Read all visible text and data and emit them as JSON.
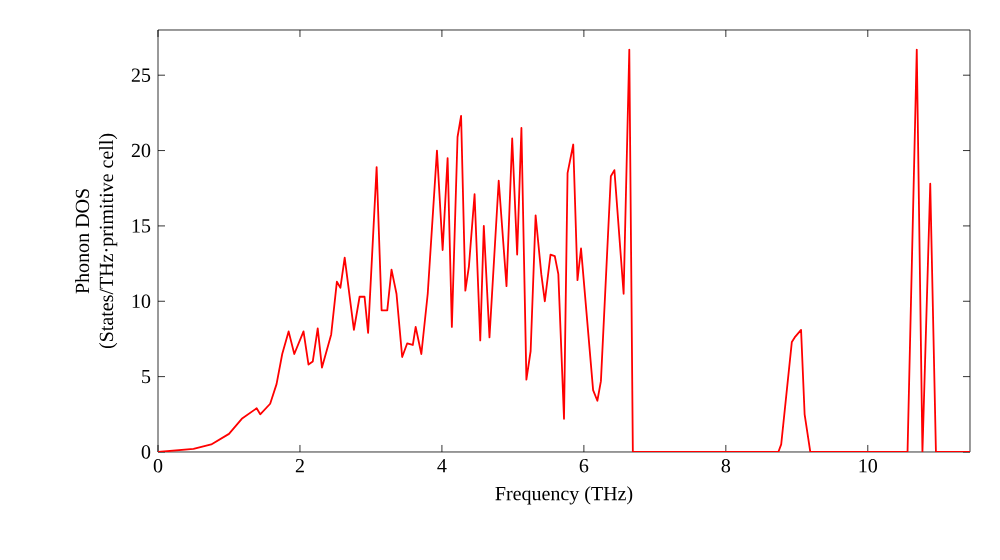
{
  "chart_data": {
    "type": "line",
    "xlabel": "Frequency (THz)",
    "ylabel": "Phonon DOS\n(States/THz·primitive cell)",
    "xlim": [
      0,
      11.44
    ],
    "ylim": [
      0,
      28
    ],
    "xticks": [
      0,
      2,
      4,
      6,
      8,
      10
    ],
    "yticks": [
      0,
      5,
      10,
      15,
      20,
      25
    ],
    "series": [
      {
        "color": "#ff0000",
        "x": [
          0,
          0.25,
          0.5,
          0.75,
          1.0,
          1.18,
          1.39,
          1.44,
          1.58,
          1.67,
          1.75,
          1.84,
          1.92,
          2.05,
          2.12,
          2.18,
          2.25,
          2.31,
          2.44,
          2.52,
          2.57,
          2.63,
          2.76,
          2.84,
          2.91,
          2.96,
          3.08,
          3.15,
          3.23,
          3.29,
          3.36,
          3.44,
          3.51,
          3.59,
          3.63,
          3.71,
          3.8,
          3.93,
          4.01,
          4.08,
          4.14,
          4.22,
          4.27,
          4.33,
          4.38,
          4.46,
          4.54,
          4.59,
          4.67,
          4.8,
          4.91,
          4.99,
          5.06,
          5.12,
          5.19,
          5.25,
          5.32,
          5.4,
          5.45,
          5.53,
          5.59,
          5.64,
          5.72,
          5.77,
          5.85,
          5.91,
          5.96,
          6.13,
          6.19,
          6.24,
          6.38,
          6.43,
          6.56,
          6.64,
          6.69,
          8.74,
          8.78,
          8.93,
          8.97,
          9.06,
          9.11,
          9.19,
          10.56,
          10.69,
          10.77,
          10.88,
          10.96,
          11.44
        ],
        "values": [
          0,
          0.1,
          0.2,
          0.5,
          1.2,
          2.2,
          2.9,
          2.5,
          3.2,
          4.5,
          6.5,
          8.0,
          6.5,
          8.0,
          5.8,
          6.0,
          8.2,
          5.6,
          7.8,
          11.3,
          10.9,
          12.9,
          8.1,
          10.3,
          10.3,
          7.9,
          18.9,
          9.4,
          9.4,
          12.1,
          10.5,
          6.3,
          7.2,
          7.1,
          8.3,
          6.5,
          10.5,
          20.0,
          13.4,
          19.5,
          8.3,
          20.9,
          22.3,
          10.7,
          12.3,
          17.1,
          7.4,
          15.0,
          7.6,
          18.0,
          11.0,
          20.8,
          13.1,
          21.5,
          4.8,
          6.7,
          15.7,
          11.8,
          10.0,
          13.1,
          13.0,
          11.8,
          2.2,
          18.5,
          20.4,
          11.4,
          13.5,
          4.1,
          3.4,
          4.7,
          18.3,
          18.7,
          10.5,
          26.7,
          0,
          0,
          0.5,
          7.3,
          7.6,
          8.1,
          2.5,
          0,
          0,
          26.7,
          0,
          17.8,
          0,
          0
        ]
      }
    ]
  }
}
